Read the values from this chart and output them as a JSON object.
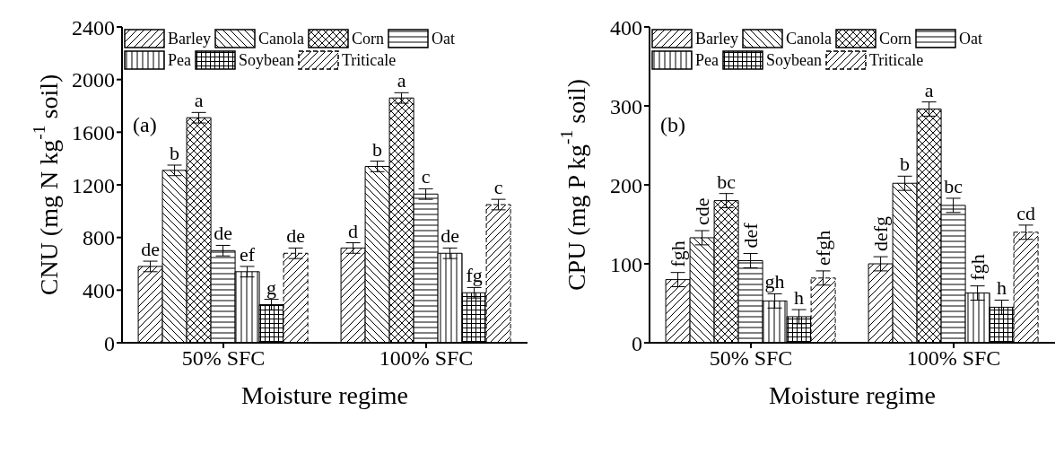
{
  "chart_data": [
    {
      "type": "bar",
      "categories": [
        "50% SFC",
        "100% SFC"
      ],
      "xlabel": "Moisture regime",
      "ylabel": "CNU (mg N kg$^{-1}$ soil)",
      "ylim": [
        0,
        2400
      ],
      "yticks": [
        0,
        400,
        800,
        1200,
        1600,
        2000,
        2400
      ],
      "legend": "top",
      "series": [
        {
          "name": "Barley",
          "color": "#000000",
          "values": [
            580,
            720
          ],
          "errors": [
            40,
            40
          ],
          "value_labels": [
            "de",
            "d"
          ]
        },
        {
          "name": "Canola",
          "color": "#000000",
          "values": [
            1310,
            1340
          ],
          "errors": [
            40,
            40
          ],
          "value_labels": [
            "b",
            "b"
          ]
        },
        {
          "name": "Corn",
          "color": "#000000",
          "values": [
            1710,
            1860
          ],
          "errors": [
            40,
            40
          ],
          "value_labels": [
            "a",
            "a"
          ]
        },
        {
          "name": "Oat",
          "color": "#000000",
          "values": [
            700,
            1130
          ],
          "errors": [
            40,
            40
          ],
          "value_labels": [
            "de",
            "c"
          ]
        },
        {
          "name": "Pea",
          "color": "#000000",
          "values": [
            540,
            680
          ],
          "errors": [
            40,
            40
          ],
          "value_labels": [
            "ef",
            "de"
          ]
        },
        {
          "name": "Soybean",
          "color": "#000000",
          "values": [
            290,
            380
          ],
          "errors": [
            40,
            40
          ],
          "value_labels": [
            "g",
            "fg"
          ]
        },
        {
          "name": "Triticale",
          "color": "#000000",
          "values": [
            680,
            1050
          ],
          "errors": [
            40,
            40
          ],
          "value_labels": [
            "de",
            "c"
          ]
        }
      ],
      "annotations": [
        "(a)"
      ]
    },
    {
      "type": "bar",
      "categories": [
        "50% SFC",
        "100% SFC"
      ],
      "xlabel": "Moisture regime",
      "ylabel": "CPU (mg P kg$^{-1}$ soil)",
      "ylim": [
        0,
        400
      ],
      "yticks": [
        0,
        100,
        200,
        300,
        400
      ],
      "legend": "top",
      "series": [
        {
          "name": "Barley",
          "color": "#000000",
          "values": [
            80,
            100
          ],
          "errors": [
            9,
            9
          ],
          "value_labels": [
            "fgh",
            "defg"
          ]
        },
        {
          "name": "Canola",
          "color": "#000000",
          "values": [
            133,
            202
          ],
          "errors": [
            9,
            9
          ],
          "value_labels": [
            "cde",
            "b"
          ]
        },
        {
          "name": "Corn",
          "color": "#000000",
          "values": [
            180,
            296
          ],
          "errors": [
            9,
            9
          ],
          "value_labels": [
            "bc",
            "a"
          ]
        },
        {
          "name": "Oat",
          "color": "#000000",
          "values": [
            104,
            174
          ],
          "errors": [
            9,
            9
          ],
          "value_labels": [
            "def",
            "bc"
          ]
        },
        {
          "name": "Pea",
          "color": "#000000",
          "values": [
            53,
            63
          ],
          "errors": [
            9,
            9
          ],
          "value_labels": [
            "gh",
            "fgh"
          ]
        },
        {
          "name": "Soybean",
          "color": "#000000",
          "values": [
            33,
            45
          ],
          "errors": [
            9,
            9
          ],
          "value_labels": [
            "h",
            "h"
          ]
        },
        {
          "name": "Triticale",
          "color": "#000000",
          "values": [
            82,
            140
          ],
          "errors": [
            9,
            9
          ],
          "value_labels": [
            "efgh",
            "cd"
          ]
        }
      ],
      "annotations": [
        "(b)"
      ]
    }
  ]
}
